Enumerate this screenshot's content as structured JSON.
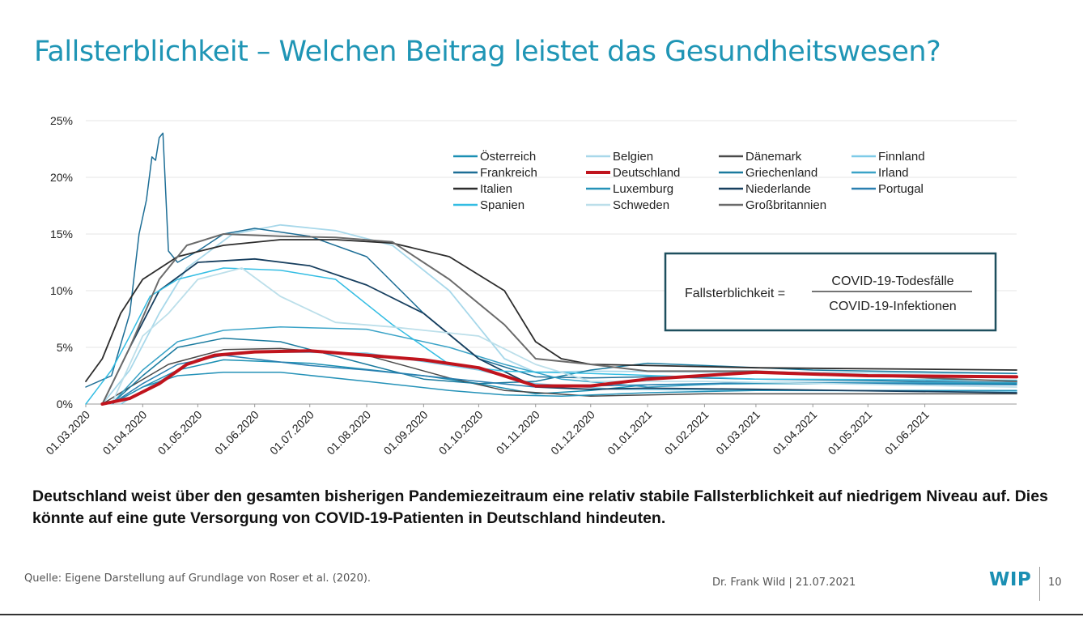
{
  "title": "Fallsterblichkeit – Welchen Beitrag leistet das Gesundheitswesen?",
  "takeaway": "Deutschland weist über den gesamten bisherigen Pandemiezeitraum eine relativ stabile Fallsterblichkeit auf niedrigem Niveau auf. Dies könnte auf eine gute Versorgung von COVID-19-Patienten in Deutschland hindeuten.",
  "source": "Quelle: Eigene Darstellung auf Grundlage von Roser et al. (2020).",
  "author": "Dr. Frank Wild | 21.07.2021",
  "logo": "WIP",
  "page_number": "10",
  "chart_data": {
    "type": "line",
    "title": "",
    "xlabel": "",
    "ylabel": "",
    "ylim": [
      0,
      25
    ],
    "yticks": [
      "0%",
      "5%",
      "10%",
      "15%",
      "20%",
      "25%"
    ],
    "xticks": [
      "01.03.2020",
      "01.04.2020",
      "01.05.2020",
      "01.06.2020",
      "01.07.2020",
      "01.08.2020",
      "01.09.2020",
      "01.10.2020",
      "01.11.2020",
      "01.12.2020",
      "01.01.2021",
      "01.02.2021",
      "01.03.2021",
      "01.04.2021",
      "01.05.2021",
      "01.06.2021"
    ],
    "x_end": "21.07.2021",
    "grid": true,
    "legend_position": "top-right",
    "formula": {
      "lhs": "Fallsterblichkeit =",
      "numerator": "COVID-19-Todesfälle",
      "denominator": "COVID-19-Infektionen"
    },
    "series": [
      {
        "name": "Österreich",
        "color": "#1a8fb3",
        "width": 1.5,
        "points": [
          [
            "2020-03-15",
            0
          ],
          [
            "2020-04-01",
            1.5
          ],
          [
            "2020-04-20",
            3.0
          ],
          [
            "2020-05-15",
            3.9
          ],
          [
            "2020-07-01",
            3.6
          ],
          [
            "2020-09-01",
            2.5
          ],
          [
            "2020-10-01",
            1.8
          ],
          [
            "2020-11-01",
            0.9
          ],
          [
            "2020-12-01",
            1.2
          ],
          [
            "2021-01-01",
            1.7
          ],
          [
            "2021-03-01",
            1.8
          ],
          [
            "2021-07-21",
            1.8
          ]
        ]
      },
      {
        "name": "Belgien",
        "color": "#a8d8ea",
        "width": 1.8,
        "points": [
          [
            "2020-03-10",
            0
          ],
          [
            "2020-03-25",
            3.0
          ],
          [
            "2020-04-10",
            8.0
          ],
          [
            "2020-04-25",
            12.0
          ],
          [
            "2020-05-20",
            15.0
          ],
          [
            "2020-06-15",
            15.8
          ],
          [
            "2020-07-15",
            15.3
          ],
          [
            "2020-08-15",
            14.0
          ],
          [
            "2020-09-15",
            10.0
          ],
          [
            "2020-10-15",
            4.0
          ],
          [
            "2020-11-01",
            2.8
          ],
          [
            "2020-12-01",
            2.9
          ],
          [
            "2021-03-01",
            2.8
          ],
          [
            "2021-07-21",
            2.7
          ]
        ]
      },
      {
        "name": "Dänemark",
        "color": "#4a4a4a",
        "width": 1.5,
        "points": [
          [
            "2020-03-10",
            0
          ],
          [
            "2020-03-25",
            1.5
          ],
          [
            "2020-04-15",
            3.5
          ],
          [
            "2020-05-15",
            4.8
          ],
          [
            "2020-06-15",
            4.9
          ],
          [
            "2020-08-01",
            4.3
          ],
          [
            "2020-09-15",
            2.3
          ],
          [
            "2020-10-15",
            1.2
          ],
          [
            "2020-12-01",
            0.7
          ],
          [
            "2021-02-01",
            0.9
          ],
          [
            "2021-07-21",
            0.9
          ]
        ]
      },
      {
        "name": "Finnland",
        "color": "#7ecbe8",
        "width": 1.5,
        "points": [
          [
            "2020-03-20",
            0
          ],
          [
            "2020-04-10",
            2.0
          ],
          [
            "2020-05-01",
            4.0
          ],
          [
            "2020-06-01",
            4.6
          ],
          [
            "2020-08-01",
            4.5
          ],
          [
            "2020-10-01",
            3.0
          ],
          [
            "2020-11-01",
            1.8
          ],
          [
            "2020-12-15",
            1.3
          ],
          [
            "2021-03-01",
            1.2
          ],
          [
            "2021-07-21",
            1.1
          ]
        ]
      },
      {
        "name": "Frankreich",
        "color": "#1d6e96",
        "width": 1.5,
        "points": [
          [
            "2020-03-01",
            1.5
          ],
          [
            "2020-03-15",
            2.5
          ],
          [
            "2020-03-25",
            8.0
          ],
          [
            "2020-03-30",
            15.0
          ],
          [
            "2020-04-03",
            18.0
          ],
          [
            "2020-04-06",
            21.8
          ],
          [
            "2020-04-08",
            21.5
          ],
          [
            "2020-04-10",
            23.5
          ],
          [
            "2020-04-12",
            23.9
          ],
          [
            "2020-04-15",
            13.5
          ],
          [
            "2020-04-20",
            12.5
          ],
          [
            "2020-05-01",
            13.5
          ],
          [
            "2020-05-15",
            15.0
          ],
          [
            "2020-06-01",
            15.5
          ],
          [
            "2020-07-01",
            14.8
          ],
          [
            "2020-08-01",
            13.0
          ],
          [
            "2020-09-01",
            8.0
          ],
          [
            "2020-10-01",
            4.0
          ],
          [
            "2020-11-01",
            2.4
          ],
          [
            "2020-12-01",
            2.3
          ],
          [
            "2021-01-01",
            2.4
          ],
          [
            "2021-03-01",
            2.2
          ],
          [
            "2021-07-21",
            1.9
          ]
        ]
      },
      {
        "name": "Deutschland",
        "color": "#c0141d",
        "width": 4,
        "points": [
          [
            "2020-03-10",
            0
          ],
          [
            "2020-03-25",
            0.5
          ],
          [
            "2020-04-10",
            1.8
          ],
          [
            "2020-04-25",
            3.5
          ],
          [
            "2020-05-10",
            4.3
          ],
          [
            "2020-06-01",
            4.6
          ],
          [
            "2020-07-01",
            4.7
          ],
          [
            "2020-08-01",
            4.3
          ],
          [
            "2020-09-01",
            3.9
          ],
          [
            "2020-10-01",
            3.2
          ],
          [
            "2020-11-01",
            1.6
          ],
          [
            "2020-12-01",
            1.6
          ],
          [
            "2021-01-01",
            2.2
          ],
          [
            "2021-03-01",
            2.8
          ],
          [
            "2021-05-01",
            2.5
          ],
          [
            "2021-07-21",
            2.4
          ]
        ]
      },
      {
        "name": "Griechenland",
        "color": "#1a7a9e",
        "width": 1.5,
        "points": [
          [
            "2020-03-15",
            0
          ],
          [
            "2020-04-01",
            2.5
          ],
          [
            "2020-04-20",
            5.0
          ],
          [
            "2020-05-15",
            5.8
          ],
          [
            "2020-06-15",
            5.5
          ],
          [
            "2020-08-01",
            3.5
          ],
          [
            "2020-09-01",
            2.2
          ],
          [
            "2020-10-01",
            1.8
          ],
          [
            "2020-11-01",
            2.0
          ],
          [
            "2020-12-01",
            3.0
          ],
          [
            "2021-01-01",
            3.6
          ],
          [
            "2021-02-01",
            3.4
          ],
          [
            "2021-04-01",
            3.0
          ],
          [
            "2021-07-21",
            2.7
          ]
        ]
      },
      {
        "name": "Irland",
        "color": "#3aa3c7",
        "width": 1.5,
        "points": [
          [
            "2020-03-15",
            0
          ],
          [
            "2020-04-01",
            3.0
          ],
          [
            "2020-04-20",
            5.5
          ],
          [
            "2020-05-15",
            6.5
          ],
          [
            "2020-06-15",
            6.8
          ],
          [
            "2020-08-01",
            6.6
          ],
          [
            "2020-09-15",
            5.0
          ],
          [
            "2020-10-15",
            3.5
          ],
          [
            "2020-11-15",
            2.2
          ],
          [
            "2021-01-01",
            1.5
          ],
          [
            "2021-03-01",
            1.9
          ],
          [
            "2021-07-21",
            1.9
          ]
        ]
      },
      {
        "name": "Italien",
        "color": "#2d2d2d",
        "width": 1.8,
        "points": [
          [
            "2020-03-01",
            2.0
          ],
          [
            "2020-03-10",
            4.0
          ],
          [
            "2020-03-20",
            8.0
          ],
          [
            "2020-04-01",
            11.0
          ],
          [
            "2020-04-20",
            13.0
          ],
          [
            "2020-05-15",
            14.0
          ],
          [
            "2020-06-15",
            14.5
          ],
          [
            "2020-07-15",
            14.5
          ],
          [
            "2020-08-15",
            14.2
          ],
          [
            "2020-09-15",
            13.0
          ],
          [
            "2020-10-15",
            10.0
          ],
          [
            "2020-11-01",
            5.5
          ],
          [
            "2020-11-15",
            4.0
          ],
          [
            "2020-12-01",
            3.5
          ],
          [
            "2021-01-01",
            3.4
          ],
          [
            "2021-03-01",
            3.2
          ],
          [
            "2021-07-21",
            3.0
          ]
        ]
      },
      {
        "name": "Luxemburg",
        "color": "#2592b8",
        "width": 1.5,
        "points": [
          [
            "2020-03-15",
            0
          ],
          [
            "2020-04-01",
            1.5
          ],
          [
            "2020-04-20",
            2.5
          ],
          [
            "2020-05-15",
            2.8
          ],
          [
            "2020-06-15",
            2.8
          ],
          [
            "2020-08-01",
            2.0
          ],
          [
            "2020-09-15",
            1.2
          ],
          [
            "2020-10-15",
            0.8
          ],
          [
            "2020-11-15",
            0.7
          ],
          [
            "2021-01-01",
            1.0
          ],
          [
            "2021-03-01",
            1.2
          ],
          [
            "2021-07-21",
            1.2
          ]
        ]
      },
      {
        "name": "Niederlande",
        "color": "#173f5f",
        "width": 1.8,
        "points": [
          [
            "2020-03-10",
            0
          ],
          [
            "2020-03-25",
            5.0
          ],
          [
            "2020-04-10",
            10.0
          ],
          [
            "2020-05-01",
            12.5
          ],
          [
            "2020-06-01",
            12.8
          ],
          [
            "2020-07-01",
            12.2
          ],
          [
            "2020-08-01",
            10.5
          ],
          [
            "2020-09-01",
            8.0
          ],
          [
            "2020-10-01",
            4.0
          ],
          [
            "2020-11-01",
            1.5
          ],
          [
            "2020-12-01",
            1.3
          ],
          [
            "2021-01-01",
            1.4
          ],
          [
            "2021-03-01",
            1.3
          ],
          [
            "2021-07-21",
            1.0
          ]
        ]
      },
      {
        "name": "Portugal",
        "color": "#2a7fb0",
        "width": 1.5,
        "points": [
          [
            "2020-03-15",
            0
          ],
          [
            "2020-04-01",
            1.8
          ],
          [
            "2020-04-20",
            3.5
          ],
          [
            "2020-05-15",
            4.3
          ],
          [
            "2020-07-01",
            3.4
          ],
          [
            "2020-08-01",
            3.0
          ],
          [
            "2020-10-01",
            2.0
          ],
          [
            "2020-11-01",
            1.5
          ],
          [
            "2020-12-01",
            1.6
          ],
          [
            "2021-01-01",
            1.7
          ],
          [
            "2021-03-01",
            1.9
          ],
          [
            "2021-07-21",
            1.7
          ]
        ]
      },
      {
        "name": "Spanien",
        "color": "#33bde3",
        "width": 1.5,
        "points": [
          [
            "2020-03-01",
            0
          ],
          [
            "2020-03-15",
            3.0
          ],
          [
            "2020-03-25",
            6.0
          ],
          [
            "2020-04-05",
            9.5
          ],
          [
            "2020-04-20",
            11.0
          ],
          [
            "2020-05-15",
            12.0
          ],
          [
            "2020-06-15",
            11.8
          ],
          [
            "2020-07-15",
            11.0
          ],
          [
            "2020-08-15",
            7.0
          ],
          [
            "2020-09-15",
            3.5
          ],
          [
            "2020-10-15",
            2.9
          ],
          [
            "2020-12-01",
            2.7
          ],
          [
            "2021-03-01",
            2.2
          ],
          [
            "2021-07-21",
            2.1
          ]
        ]
      },
      {
        "name": "Schweden",
        "color": "#bcdfea",
        "width": 1.8,
        "points": [
          [
            "2020-03-15",
            0
          ],
          [
            "2020-04-01",
            6.0
          ],
          [
            "2020-04-15",
            8.0
          ],
          [
            "2020-05-01",
            11.0
          ],
          [
            "2020-05-25",
            12.0
          ],
          [
            "2020-06-15",
            9.5
          ],
          [
            "2020-07-15",
            7.2
          ],
          [
            "2020-08-15",
            6.8
          ],
          [
            "2020-10-01",
            6.0
          ],
          [
            "2020-11-01",
            3.5
          ],
          [
            "2020-12-01",
            2.0
          ],
          [
            "2021-02-01",
            2.0
          ],
          [
            "2021-07-21",
            1.5
          ]
        ]
      },
      {
        "name": "Großbritannien",
        "color": "#6b6b6b",
        "width": 2,
        "points": [
          [
            "2020-03-10",
            0
          ],
          [
            "2020-03-25",
            5.0
          ],
          [
            "2020-04-10",
            11.0
          ],
          [
            "2020-04-25",
            14.0
          ],
          [
            "2020-05-15",
            15.0
          ],
          [
            "2020-06-15",
            14.8
          ],
          [
            "2020-07-15",
            14.7
          ],
          [
            "2020-08-15",
            14.3
          ],
          [
            "2020-09-15",
            11.0
          ],
          [
            "2020-10-15",
            7.0
          ],
          [
            "2020-11-01",
            4.0
          ],
          [
            "2020-12-01",
            3.5
          ],
          [
            "2021-01-01",
            2.9
          ],
          [
            "2021-03-01",
            2.9
          ],
          [
            "2021-07-21",
            2.0
          ]
        ]
      }
    ]
  }
}
